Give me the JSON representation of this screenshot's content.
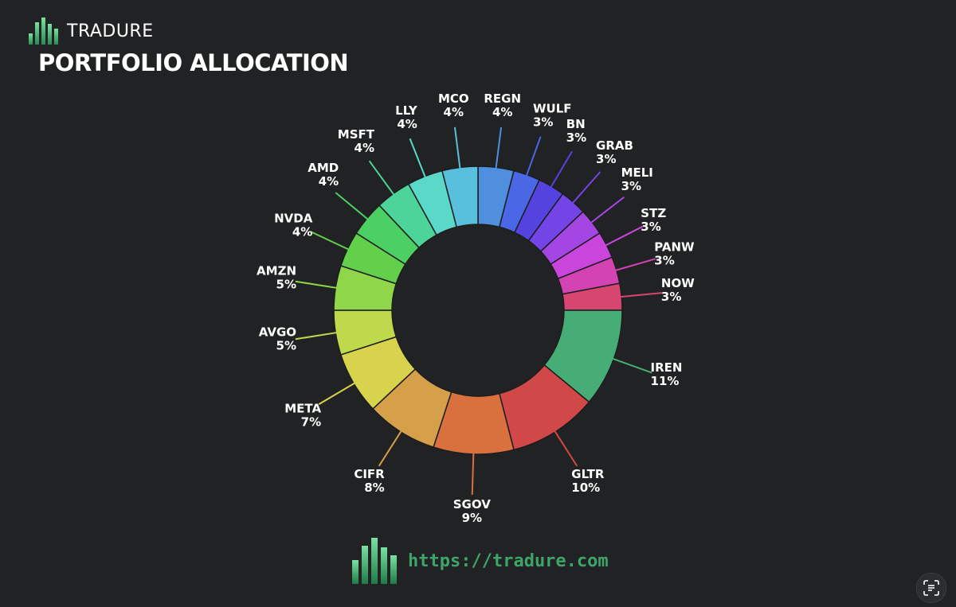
{
  "brand": {
    "name": "TRADURE",
    "logo_icon": "bar-chart-logo-icon",
    "accent": "#3fa46a"
  },
  "title": "PORTFOLIO ALLOCATION",
  "footer": {
    "url": "https://tradure.com"
  },
  "scan_button": {
    "icon": "text-scan-icon"
  },
  "chart_data": {
    "type": "pie",
    "donut": true,
    "title": "PORTFOLIO ALLOCATION",
    "unit": "%",
    "slices": [
      {
        "label": "REGN",
        "value": 4,
        "display": "4%",
        "color": "#4f8fde"
      },
      {
        "label": "WULF",
        "value": 3,
        "display": "3%",
        "color": "#4a67e6"
      },
      {
        "label": "BN",
        "value": 3,
        "display": "3%",
        "color": "#5543e0"
      },
      {
        "label": "GRAB",
        "value": 3,
        "display": "3%",
        "color": "#7344e6"
      },
      {
        "label": "MELI",
        "value": 3,
        "display": "3%",
        "color": "#a446e4"
      },
      {
        "label": "STZ",
        "value": 3,
        "display": "3%",
        "color": "#c945dc"
      },
      {
        "label": "PANW",
        "value": 3,
        "display": "3%",
        "color": "#d443b3"
      },
      {
        "label": "NOW",
        "value": 3,
        "display": "3%",
        "color": "#d64671"
      },
      {
        "label": "IREN",
        "value": 11,
        "display": "11%",
        "color": "#46ad77"
      },
      {
        "label": "GLTR",
        "value": 10,
        "display": "10%",
        "color": "#d14848"
      },
      {
        "label": "SGOV",
        "value": 9,
        "display": "9%",
        "color": "#d9713f"
      },
      {
        "label": "CIFR",
        "value": 8,
        "display": "8%",
        "color": "#d6a04a"
      },
      {
        "label": "META",
        "value": 7,
        "display": "7%",
        "color": "#d8d34d"
      },
      {
        "label": "AVGO",
        "value": 5,
        "display": "5%",
        "color": "#bfd94c"
      },
      {
        "label": "AMZN",
        "value": 5,
        "display": "5%",
        "color": "#8fd64a"
      },
      {
        "label": "NVDA",
        "value": 4,
        "display": "4%",
        "color": "#63d04c"
      },
      {
        "label": "AMD",
        "value": 4,
        "display": "4%",
        "color": "#4ccf63"
      },
      {
        "label": "MSFT",
        "value": 4,
        "display": "4%",
        "color": "#4cd49b"
      },
      {
        "label": "LLY",
        "value": 4,
        "display": "4%",
        "color": "#5ad8c8"
      },
      {
        "label": "MCO",
        "value": 4,
        "display": "4%",
        "color": "#58bfdc"
      }
    ]
  }
}
